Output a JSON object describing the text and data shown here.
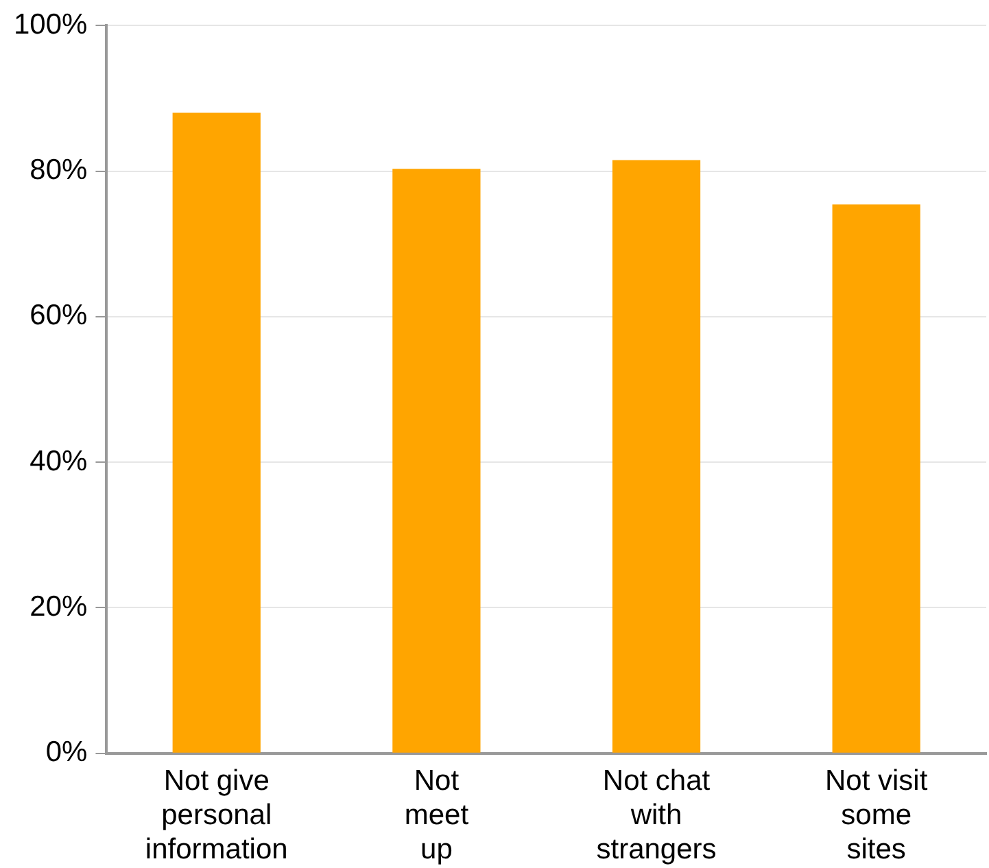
{
  "chart_data": {
    "type": "bar",
    "categories": [
      "Not give\npersonal\ninformation",
      "Not\nmeet\nup",
      "Not chat\nwith\nstrangers",
      "Not visit\nsome\nsites"
    ],
    "values": [
      88,
      80.3,
      81.5,
      75.4
    ],
    "color": "#ffa500",
    "ylim": [
      0,
      100
    ],
    "yticks": [
      {
        "value": 0,
        "label": "0%"
      },
      {
        "value": 20,
        "label": "20%"
      },
      {
        "value": 40,
        "label": "40%"
      },
      {
        "value": 60,
        "label": "60%"
      },
      {
        "value": 80,
        "label": "80%"
      },
      {
        "value": 100,
        "label": "100%"
      }
    ],
    "grid": "y",
    "legend": false
  }
}
